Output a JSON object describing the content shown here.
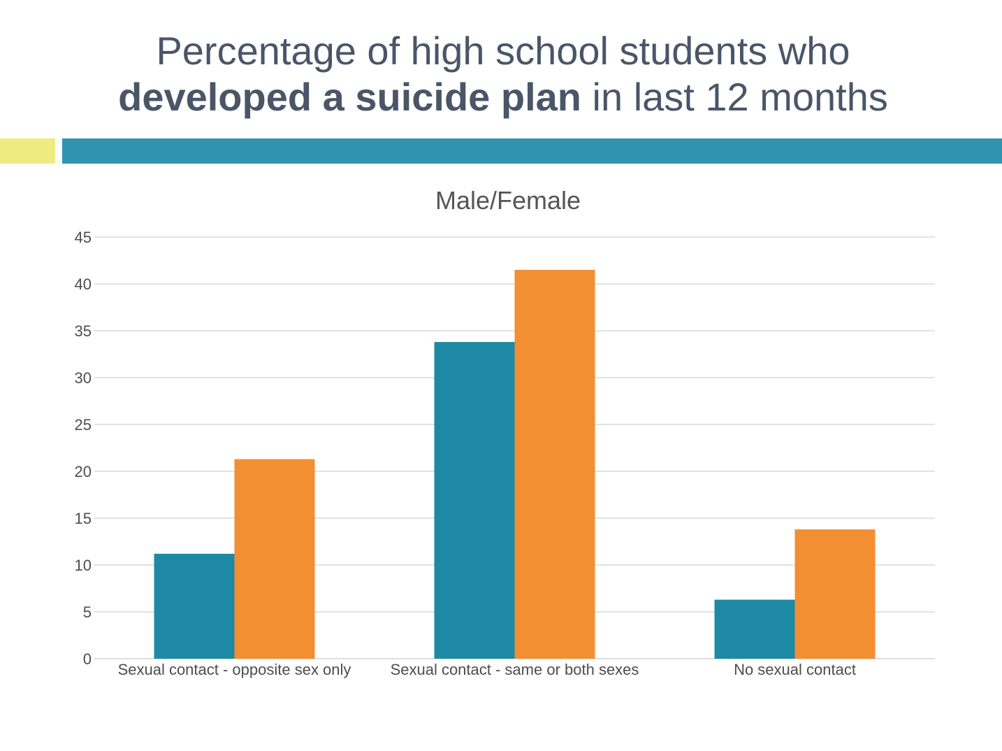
{
  "slide": {
    "title_line1": "Percentage of high school students who",
    "title_bold": "developed a suicide plan",
    "title_rest": " in last 12 months",
    "accent_colors": {
      "left": "#efeb83",
      "right": "#3093b0"
    }
  },
  "chart_data": {
    "type": "bar",
    "title": "Male/Female",
    "categories": [
      "Sexual contact - opposite sex only",
      "Sexual contact - same or both sexes",
      "No sexual contact"
    ],
    "series": [
      {
        "values": [
          11.2,
          33.8,
          6.3
        ],
        "color": "#1e89a4"
      },
      {
        "values": [
          21.3,
          41.5,
          13.8
        ],
        "color": "#f28f33"
      }
    ],
    "ylim": [
      0,
      45
    ],
    "yticks": [
      0,
      5,
      10,
      15,
      20,
      25,
      30,
      35,
      40,
      45
    ],
    "grid": true,
    "xlabel": "",
    "ylabel": ""
  }
}
